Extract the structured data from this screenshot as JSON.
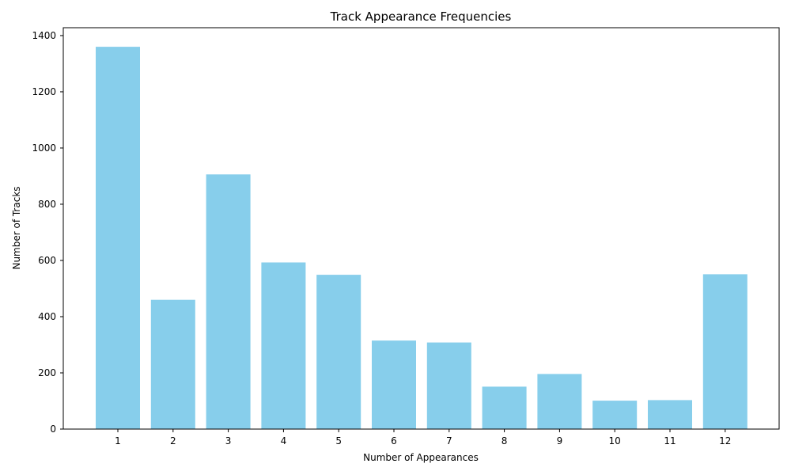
{
  "chart_data": {
    "type": "bar",
    "title": "Track Appearance Frequencies",
    "xlabel": "Number of Appearances",
    "ylabel": "Number of Tracks",
    "categories": [
      "1",
      "2",
      "3",
      "4",
      "5",
      "6",
      "7",
      "8",
      "9",
      "10",
      "11",
      "12"
    ],
    "values": [
      1360,
      460,
      906,
      593,
      549,
      315,
      308,
      151,
      196,
      101,
      103,
      551
    ],
    "ylim": [
      0,
      1428
    ],
    "yticks": [
      0,
      200,
      400,
      600,
      800,
      1000,
      1200,
      1400
    ],
    "grid": false,
    "bar_color": "#87ceeb"
  }
}
